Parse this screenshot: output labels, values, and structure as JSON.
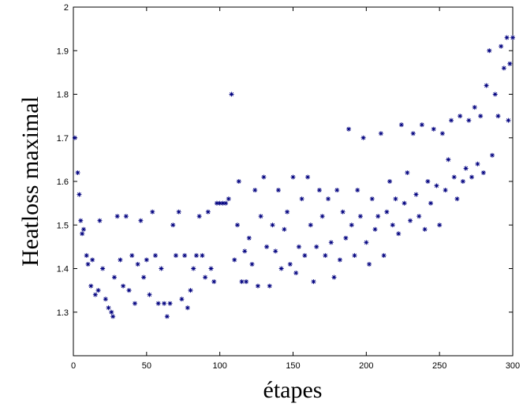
{
  "chart_data": {
    "type": "scatter",
    "xlabel": "étapes",
    "ylabel": "Heatloss maximal",
    "xlim": [
      0,
      300
    ],
    "ylim": [
      1.2,
      2
    ],
    "xticks": [
      0,
      50,
      100,
      150,
      200,
      250,
      300
    ],
    "yticks": [
      1.3,
      1.4,
      1.5,
      1.6,
      1.7,
      1.8,
      1.9,
      2
    ],
    "color": "#00007f",
    "x": [
      1,
      3,
      4,
      5,
      6,
      7,
      9,
      10,
      12,
      13,
      15,
      17,
      18,
      20,
      22,
      24,
      26,
      27,
      28,
      30,
      32,
      34,
      36,
      38,
      40,
      42,
      44,
      46,
      48,
      50,
      52,
      54,
      56,
      58,
      60,
      62,
      64,
      66,
      68,
      70,
      72,
      74,
      76,
      78,
      80,
      82,
      84,
      86,
      88,
      90,
      92,
      94,
      96,
      98,
      100,
      102,
      104,
      106,
      108,
      110,
      112,
      113,
      115,
      117,
      118,
      120,
      122,
      124,
      126,
      128,
      130,
      132,
      134,
      136,
      138,
      140,
      142,
      144,
      146,
      148,
      150,
      152,
      154,
      156,
      158,
      160,
      162,
      164,
      166,
      168,
      170,
      172,
      174,
      176,
      178,
      180,
      182,
      184,
      186,
      188,
      190,
      192,
      194,
      196,
      198,
      200,
      202,
      204,
      206,
      208,
      210,
      212,
      214,
      216,
      218,
      220,
      222,
      224,
      226,
      228,
      230,
      232,
      234,
      236,
      238,
      240,
      242,
      244,
      246,
      248,
      250,
      252,
      254,
      256,
      258,
      260,
      262,
      264,
      266,
      268,
      270,
      272,
      274,
      276,
      278,
      280,
      282,
      284,
      286,
      288,
      290,
      292,
      294,
      296,
      297,
      298,
      300
    ],
    "values": [
      1.7,
      1.62,
      1.57,
      1.51,
      1.48,
      1.49,
      1.43,
      1.41,
      1.36,
      1.42,
      1.34,
      1.35,
      1.51,
      1.4,
      1.33,
      1.31,
      1.3,
      1.29,
      1.38,
      1.52,
      1.42,
      1.36,
      1.52,
      1.35,
      1.43,
      1.32,
      1.41,
      1.51,
      1.38,
      1.42,
      1.34,
      1.53,
      1.43,
      1.32,
      1.4,
      1.32,
      1.29,
      1.32,
      1.5,
      1.43,
      1.53,
      1.33,
      1.43,
      1.31,
      1.35,
      1.4,
      1.43,
      1.52,
      1.43,
      1.38,
      1.53,
      1.4,
      1.37,
      1.55,
      1.55,
      1.55,
      1.55,
      1.56,
      1.8,
      1.42,
      1.5,
      1.6,
      1.37,
      1.44,
      1.37,
      1.47,
      1.41,
      1.58,
      1.36,
      1.52,
      1.61,
      1.45,
      1.36,
      1.5,
      1.44,
      1.58,
      1.4,
      1.49,
      1.53,
      1.41,
      1.61,
      1.39,
      1.45,
      1.56,
      1.43,
      1.61,
      1.5,
      1.37,
      1.45,
      1.58,
      1.52,
      1.43,
      1.56,
      1.46,
      1.38,
      1.58,
      1.42,
      1.53,
      1.47,
      1.72,
      1.5,
      1.43,
      1.58,
      1.52,
      1.7,
      1.46,
      1.41,
      1.56,
      1.49,
      1.52,
      1.71,
      1.43,
      1.53,
      1.6,
      1.5,
      1.56,
      1.48,
      1.73,
      1.55,
      1.62,
      1.51,
      1.71,
      1.57,
      1.52,
      1.73,
      1.49,
      1.6,
      1.55,
      1.72,
      1.59,
      1.5,
      1.71,
      1.58,
      1.65,
      1.74,
      1.61,
      1.56,
      1.75,
      1.6,
      1.63,
      1.74,
      1.61,
      1.77,
      1.64,
      1.75,
      1.62,
      1.82,
      1.9,
      1.66,
      1.8,
      1.75,
      1.91,
      1.86,
      1.93,
      1.74,
      1.87,
      1.93
    ]
  }
}
